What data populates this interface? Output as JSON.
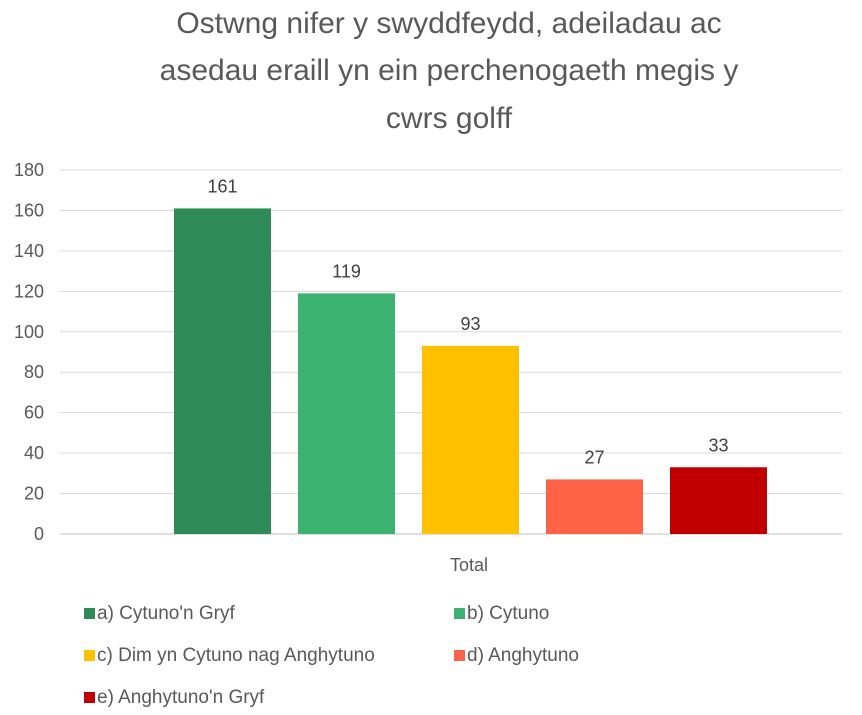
{
  "chart_data": {
    "type": "bar",
    "title_lines": [
      "Ostwng nifer y swyddfeydd, adeiladau ac",
      "asedau eraill yn ein perchenogaeth  megis y",
      "cwrs golff"
    ],
    "categories": [
      "Total"
    ],
    "series": [
      {
        "name": "a) Cytuno'n Gryf",
        "values": [
          161
        ],
        "color": "#2e8b57"
      },
      {
        "name": "b) Cytuno",
        "values": [
          119
        ],
        "color": "#3cb371"
      },
      {
        "name": "c) Dim yn Cytuno nag Anghytuno",
        "values": [
          93
        ],
        "color": "#ffc000"
      },
      {
        "name": "d) Anghytuno",
        "values": [
          27
        ],
        "color": "#ff6347"
      },
      {
        "name": "e) Anghytuno'n Gryf",
        "values": [
          33
        ],
        "color": "#c00000"
      }
    ],
    "ylim": [
      0,
      180
    ],
    "yticks": [
      0,
      20,
      40,
      60,
      80,
      100,
      120,
      140,
      160,
      180
    ],
    "grid": true,
    "legend_position": "bottom"
  }
}
